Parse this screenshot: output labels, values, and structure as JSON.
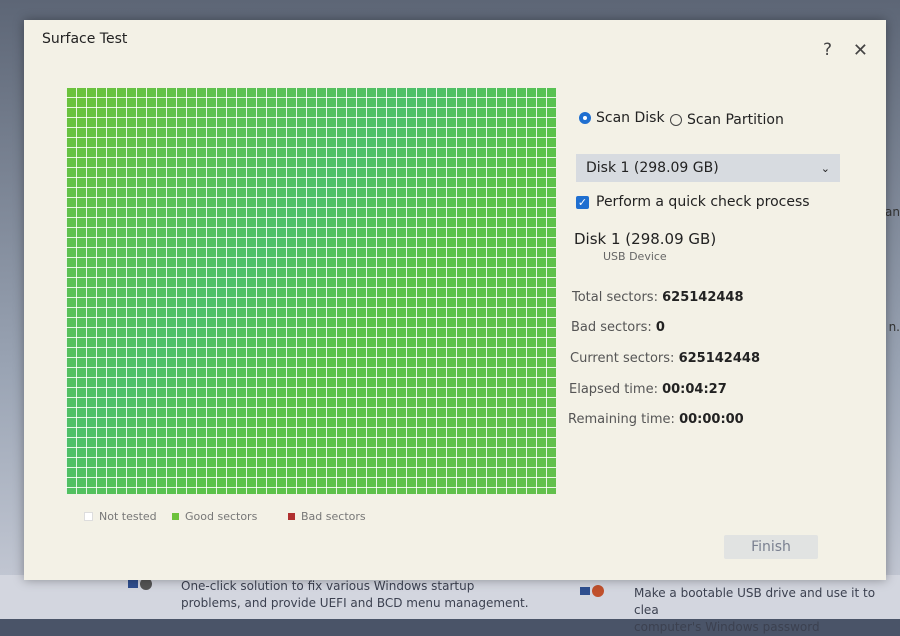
{
  "dialog": {
    "title": "Surface Test",
    "help_label": "?",
    "close_label": "✕"
  },
  "legend": [
    {
      "label": "Not tested",
      "color": "#ffffff"
    },
    {
      "label": "Good sectors",
      "color": "#6cc23b"
    },
    {
      "label": "Bad sectors",
      "color": "#b03030"
    }
  ],
  "scan_mode": {
    "options": [
      "Scan Disk",
      "Scan Partition"
    ],
    "selected": "Scan Disk"
  },
  "disk_select": {
    "value": "Disk 1 (298.09 GB)",
    "chevron": "chevron-down-icon"
  },
  "quick_check": {
    "label": "Perform a quick check process",
    "checked": true
  },
  "disk_info": {
    "name": "Disk 1 (298.09 GB)",
    "type": "USB Device"
  },
  "stats": [
    {
      "label": "Total sectors:",
      "value": "625142448"
    },
    {
      "label": "Bad sectors:",
      "value": "0"
    },
    {
      "label": "Current sectors:",
      "value": "625142448"
    },
    {
      "label": "Elapsed time:",
      "value": "00:04:27"
    },
    {
      "label": "Remaining time:",
      "value": "00:00:00"
    }
  ],
  "finish_label": "Finish",
  "background": {
    "item1": [
      "One-click solution to fix various Windows startup",
      "problems, and provide UEFI and BCD menu management."
    ],
    "item2": [
      "Make a bootable USB drive and use it to clea",
      "computer's Windows password"
    ],
    "side1": "nan",
    "side2": "n."
  }
}
